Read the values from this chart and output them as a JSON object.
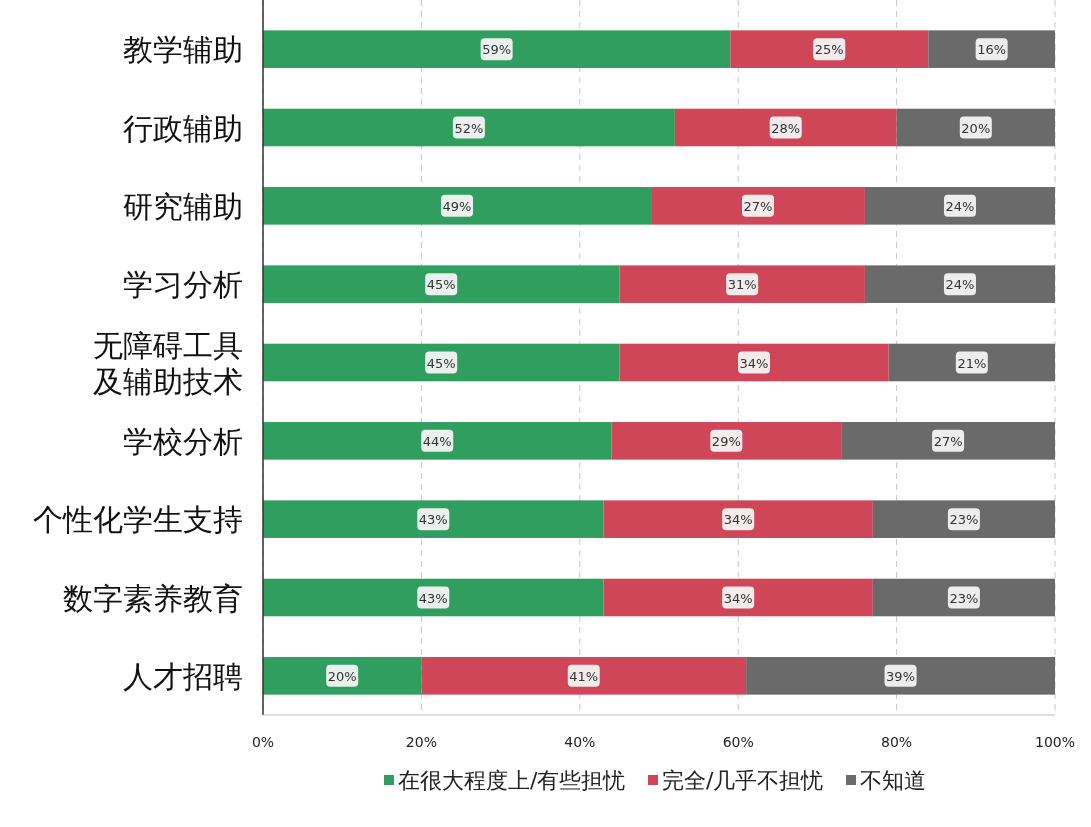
{
  "chart_data": {
    "type": "bar",
    "orientation": "horizontal",
    "stacked": true,
    "categories": [
      "教学辅助",
      "行政辅助",
      "研究辅助",
      "学习分析",
      "无障碍工具及辅助技术",
      "学校分析",
      "个性化学生支持",
      "数字素养教育",
      "人才招聘"
    ],
    "series": [
      {
        "name": "在很大程度上/有些担忧",
        "color": "#2f9e5e",
        "values": [
          59,
          52,
          49,
          45,
          45,
          44,
          43,
          43,
          20
        ],
        "value_labels": [
          "59%",
          "52%",
          "49%",
          "45%",
          "45%",
          "44%",
          "43%",
          "43%",
          "20%"
        ]
      },
      {
        "name": "完全/几乎不担忧",
        "color": "#cf4659",
        "values": [
          25,
          28,
          27,
          31,
          34,
          29,
          34,
          34,
          41
        ],
        "value_labels": [
          "25%",
          "28%",
          "27%",
          "31%",
          "34%",
          "29%",
          "34%",
          "34%",
          "41%"
        ]
      },
      {
        "name": "不知道",
        "color": "#6a6a6a",
        "values": [
          16,
          20,
          24,
          24,
          21,
          27,
          23,
          23,
          39
        ],
        "value_labels": [
          "16%",
          "20%",
          "24%",
          "24%",
          "21%",
          "27%",
          "23%",
          "23%",
          "39%"
        ]
      }
    ],
    "xlim": [
      0,
      100
    ],
    "xticks": [
      {
        "value": 0,
        "label": "0%"
      },
      {
        "value": 20,
        "label": "20%"
      },
      {
        "value": 40,
        "label": "40%"
      },
      {
        "value": 60,
        "label": "60%"
      },
      {
        "value": 80,
        "label": "80%"
      },
      {
        "value": 100,
        "label": "100%"
      }
    ],
    "grid": "x",
    "legend": "bottom"
  }
}
